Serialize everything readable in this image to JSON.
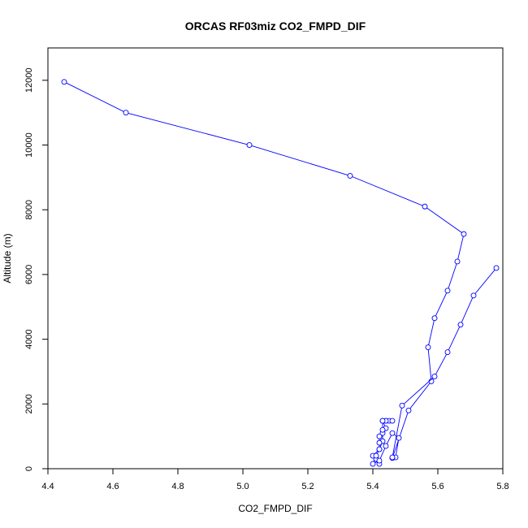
{
  "chart_data": {
    "type": "line",
    "title": "ORCAS RF03miz CO2_FMPD_DIF",
    "xlabel": "CO2_FMPD_DIF",
    "ylabel": "Altitude (m)",
    "xlim": [
      4.4,
      5.8
    ],
    "ylim": [
      0,
      13000
    ],
    "x_ticks": [
      "4.4",
      "4.6",
      "4.8",
      "5.0",
      "5.2",
      "5.4",
      "5.6",
      "5.8"
    ],
    "y_ticks": [
      "0",
      "2000",
      "4000",
      "6000",
      "8000",
      "10000",
      "12000"
    ],
    "grid": false,
    "legend": "none",
    "series": [
      {
        "color": "#0000ff",
        "marker": "open-circle",
        "points": [
          [
            5.42,
            150
          ],
          [
            5.41,
            300
          ],
          [
            5.4,
            400
          ],
          [
            5.42,
            600
          ],
          [
            5.43,
            850
          ],
          [
            5.43,
            1100
          ],
          [
            5.44,
            1250
          ],
          [
            5.43,
            1480
          ],
          [
            5.44,
            1480
          ],
          [
            5.45,
            1480
          ],
          [
            5.46,
            1480
          ],
          [
            5.44,
            1480
          ],
          [
            5.43,
            1480
          ],
          [
            5.43,
            1200
          ],
          [
            5.42,
            1000
          ],
          [
            5.42,
            800
          ],
          [
            5.42,
            600
          ],
          [
            5.41,
            400
          ],
          [
            5.4,
            150
          ],
          [
            5.42,
            250
          ],
          [
            5.44,
            700
          ],
          [
            5.46,
            1100
          ],
          [
            5.48,
            950
          ],
          [
            5.47,
            350
          ],
          [
            5.46,
            330
          ],
          [
            5.51,
            1800
          ],
          [
            5.58,
            2700
          ],
          [
            5.57,
            3750
          ],
          [
            5.59,
            4650
          ],
          [
            5.63,
            5500
          ],
          [
            5.66,
            6400
          ],
          [
            5.68,
            7250
          ],
          [
            5.56,
            8100
          ],
          [
            5.33,
            9050
          ],
          [
            5.02,
            10000
          ],
          [
            4.64,
            11000
          ],
          [
            4.45,
            11950
          ]
        ]
      },
      {
        "color": "#0000ff",
        "marker": "open-circle",
        "points": [
          [
            5.46,
            350
          ],
          [
            5.49,
            1950
          ],
          [
            5.59,
            2850
          ],
          [
            5.63,
            3600
          ],
          [
            5.67,
            4450
          ],
          [
            5.71,
            5350
          ],
          [
            5.78,
            6200
          ]
        ]
      }
    ]
  }
}
